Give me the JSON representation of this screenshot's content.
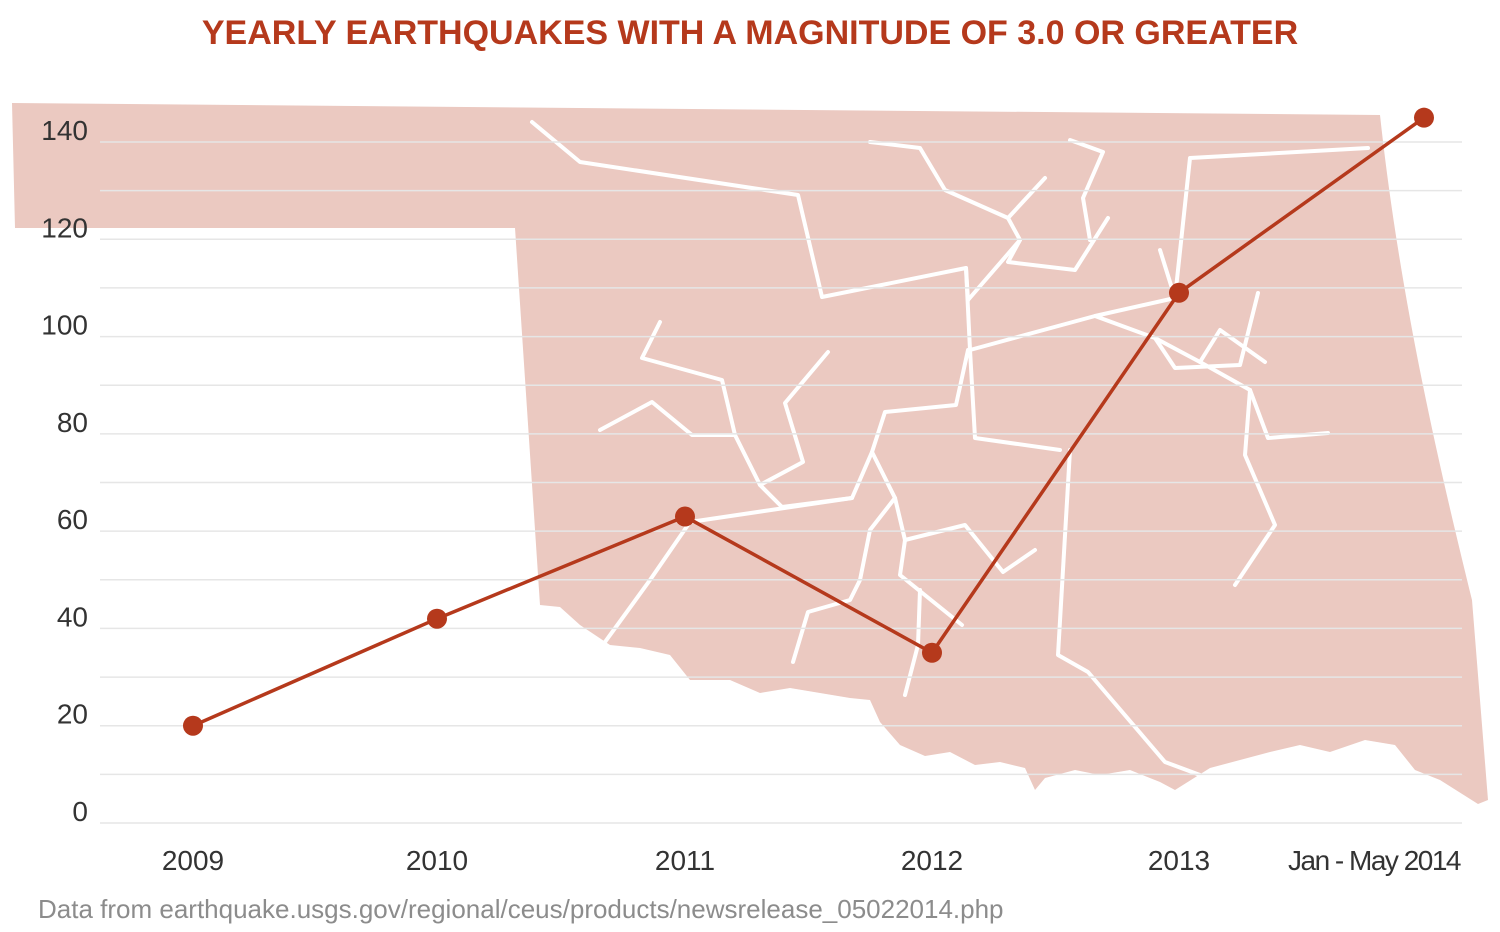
{
  "colors": {
    "title": "#b5391c",
    "line": "#b5391c",
    "map_fill": "#ebc9c1",
    "map_lines": "#ffffff",
    "grid": "#e6e6e6",
    "tick_text": "#333333",
    "source_text": "#8c8c8c"
  },
  "chart_data": {
    "type": "line",
    "title": "YEARLY EARTHQUAKES WITH A MAGNITUDE OF 3.0 OR GREATER",
    "xlabel": "",
    "ylabel": "",
    "categories": [
      "2009",
      "2010",
      "2011",
      "2012",
      "2013",
      "Jan - May 2014"
    ],
    "series": [
      {
        "values": [
          20,
          42,
          63,
          35,
          109,
          145
        ]
      }
    ],
    "ylim": [
      0,
      145
    ],
    "yticks": [
      0,
      20,
      40,
      60,
      80,
      100,
      120,
      140
    ],
    "grid": true,
    "legend": "none",
    "background": "Oklahoma state map with fault lines",
    "source": "Data from earthquake.usgs.gov/regional/ceus/products/newsrelease_05022014.php"
  }
}
